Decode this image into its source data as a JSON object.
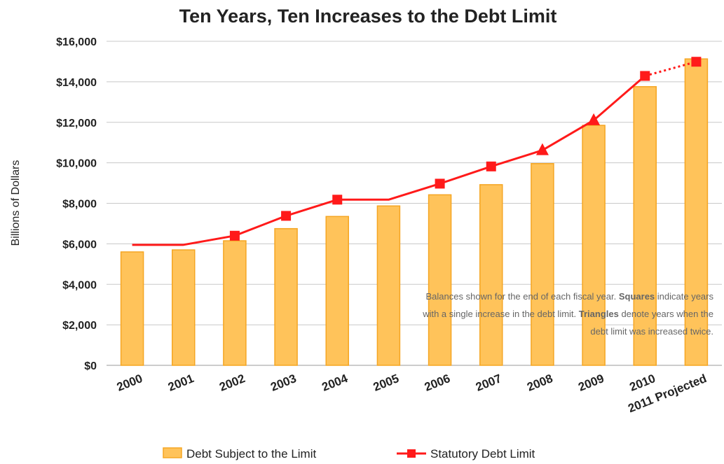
{
  "chart_data": {
    "type": "bar",
    "title": "Ten Years, Ten Increases to the Debt Limit",
    "ylabel": "Billions of Dollars",
    "xlabel": "",
    "ylim": [
      0,
      16000
    ],
    "yticks": [
      0,
      2000,
      4000,
      6000,
      8000,
      10000,
      12000,
      14000,
      16000
    ],
    "ytick_labels": [
      "$0",
      "$2,000",
      "$4,000",
      "$6,000",
      "$8,000",
      "$10,000",
      "$12,000",
      "$14,000",
      "$16,000"
    ],
    "grid": true,
    "legend_position": "bottom",
    "categories": [
      "2000",
      "2001",
      "2002",
      "2003",
      "2004",
      "2005",
      "2006",
      "2007",
      "2008",
      "2009",
      "2010",
      "2011 Projected"
    ],
    "series": [
      {
        "name": "Debt Subject to the Limit",
        "type": "bar",
        "color": "#FFC35A",
        "edge_color": "#F5A623",
        "values": [
          5600,
          5700,
          6150,
          6750,
          7350,
          7870,
          8420,
          8920,
          9960,
          11850,
          13760,
          15130
        ]
      },
      {
        "name": "Statutory Debt Limit",
        "type": "line",
        "color": "#FF1A1A",
        "values": [
          5950,
          5950,
          6400,
          7380,
          8180,
          8180,
          8970,
          9820,
          10620,
          12100,
          14290,
          14990
        ],
        "markers": [
          "none",
          "none",
          "square",
          "square",
          "square",
          "none",
          "square",
          "square",
          "triangle",
          "triangle",
          "square",
          "square"
        ],
        "dashed_last_segment": true
      }
    ],
    "annotation": {
      "lines": [
        [
          {
            "text": "Balances shown for the end of each fiscal year.  ",
            "bold": false
          },
          {
            "text": "Squares",
            "bold": true
          },
          {
            "text": " indicate years",
            "bold": false
          }
        ],
        [
          {
            "text": "with a single increase in the debt limit. ",
            "bold": false
          },
          {
            "text": "Triangles",
            "bold": true
          },
          {
            "text": " denote years when the",
            "bold": false
          }
        ],
        [
          {
            "text": "debt limit was increased twice.",
            "bold": false
          }
        ]
      ]
    }
  }
}
